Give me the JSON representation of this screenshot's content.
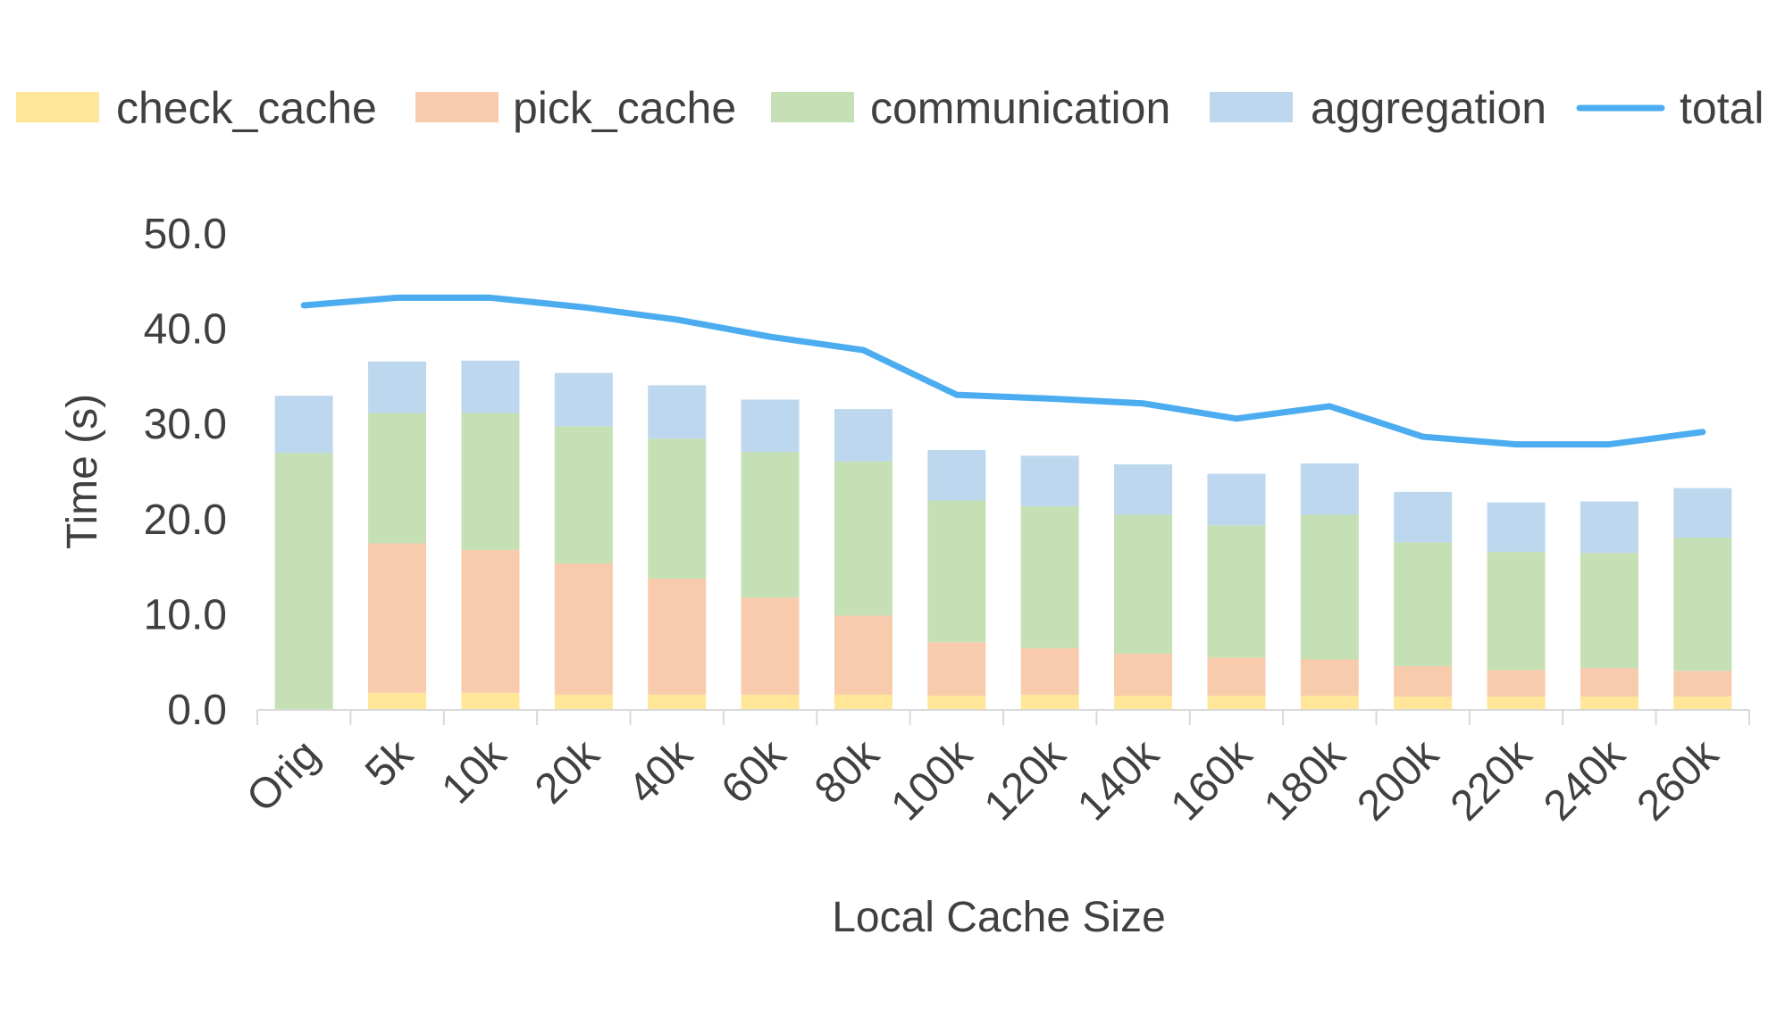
{
  "chart_data": {
    "type": "bar",
    "stacked": true,
    "xlabel": "Local Cache Size",
    "ylabel": "Time (s)",
    "ylim": [
      0,
      50
    ],
    "yticks": [
      "0.0",
      "10.0",
      "20.0",
      "30.0",
      "40.0",
      "50.0"
    ],
    "grid": false,
    "legend_position": "top",
    "categories": [
      "Orig",
      "5k",
      "10k",
      "20k",
      "40k",
      "60k",
      "80k",
      "100k",
      "120k",
      "140k",
      "160k",
      "180k",
      "200k",
      "220k",
      "240k",
      "260k"
    ],
    "series": [
      {
        "name": "check_cache",
        "type": "bar",
        "color": "#FFE699",
        "values": [
          0,
          1.8,
          1.8,
          1.6,
          1.6,
          1.6,
          1.6,
          1.5,
          1.6,
          1.5,
          1.5,
          1.5,
          1.4,
          1.4,
          1.4,
          1.4
        ]
      },
      {
        "name": "pick_cache",
        "type": "bar",
        "color": "#F8CBAD",
        "values": [
          0,
          15.7,
          15.0,
          13.8,
          12.2,
          10.2,
          8.3,
          5.6,
          4.9,
          4.4,
          4.0,
          3.8,
          3.2,
          2.8,
          3.0,
          2.7
        ]
      },
      {
        "name": "communication",
        "type": "bar",
        "color": "#C5E0B4",
        "values": [
          27.0,
          13.7,
          14.4,
          14.4,
          14.7,
          15.3,
          16.2,
          14.9,
          14.9,
          14.6,
          13.9,
          15.2,
          13.0,
          12.4,
          12.1,
          14.0
        ]
      },
      {
        "name": "aggregation",
        "type": "bar",
        "color": "#BDD7EE",
        "values": [
          6.0,
          5.4,
          5.5,
          5.6,
          5.6,
          5.5,
          5.5,
          5.3,
          5.3,
          5.3,
          5.4,
          5.4,
          5.3,
          5.2,
          5.4,
          5.2
        ]
      },
      {
        "name": "total",
        "type": "line",
        "color": "#4BACF0",
        "values": [
          42.5,
          43.3,
          43.3,
          42.3,
          41.0,
          39.2,
          37.8,
          33.1,
          32.7,
          32.2,
          30.6,
          31.9,
          28.7,
          27.9,
          27.9,
          29.2
        ]
      }
    ]
  }
}
